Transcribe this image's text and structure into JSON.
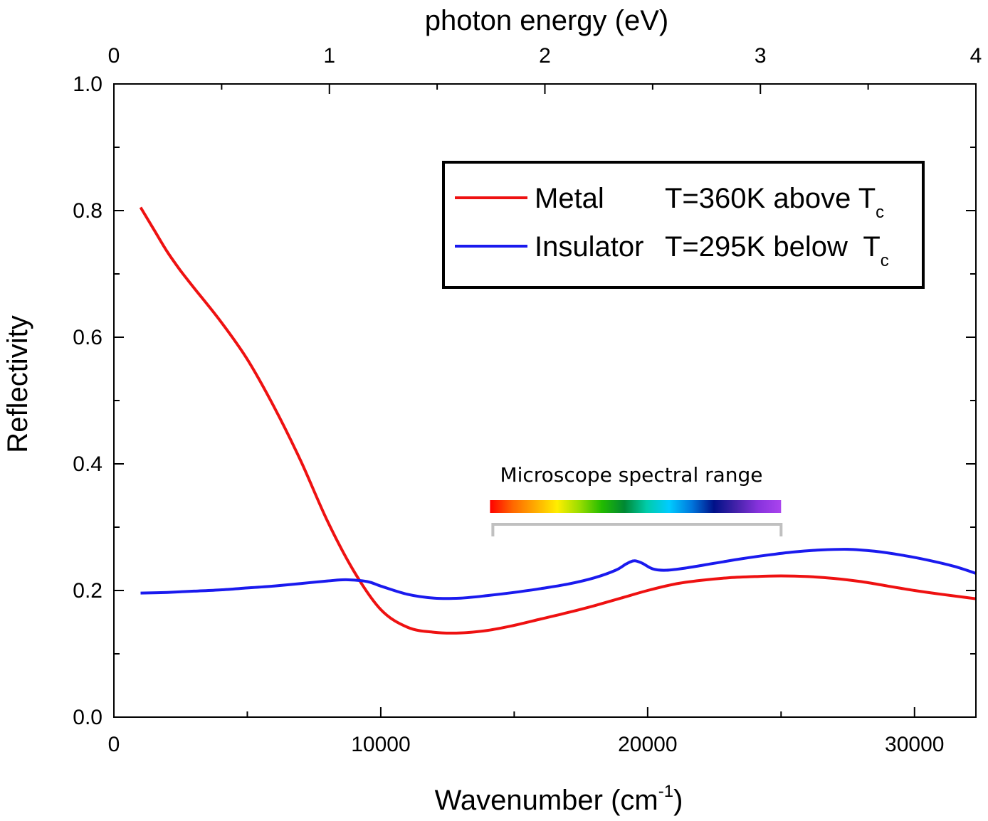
{
  "chart_data": {
    "type": "line",
    "xlabel_main": "Wavenumber (cm",
    "xlabel_sup": "-1",
    "xlabel_close": ")",
    "ylabel": "Reflectivity",
    "top_axis_title": "photon energy (eV)",
    "xlim": [
      0,
      32300
    ],
    "ylim": [
      0.0,
      1.0
    ],
    "top_xlim": [
      0,
      4
    ],
    "x_ticks": [
      0,
      10000,
      20000,
      30000
    ],
    "x_tick_labels": [
      "0",
      "10000",
      "20000",
      "30000"
    ],
    "x_minor_ticks": [
      5000,
      15000,
      25000
    ],
    "y_ticks": [
      0.0,
      0.2,
      0.4,
      0.6,
      0.8,
      1.0
    ],
    "y_tick_labels": [
      "0.0",
      "0.2",
      "0.4",
      "0.6",
      "0.8",
      "1.0"
    ],
    "y_minor_ticks": [
      0.1,
      0.3,
      0.5,
      0.7,
      0.9
    ],
    "top_ticks": [
      0,
      1,
      2,
      3,
      4
    ],
    "top_tick_labels": [
      "0",
      "1",
      "2",
      "3",
      "4"
    ],
    "top_minor_ticks": [
      0.5,
      1.5,
      2.5,
      3.5
    ],
    "legend": {
      "position": "top-right",
      "entries": [
        {
          "label": "Metal",
          "condition": "T=360K above T",
          "subscript": "c",
          "color": "#ee1111"
        },
        {
          "label": "Insulator",
          "condition": "T=295K below  T",
          "subscript": "c",
          "color": "#1a1aee"
        }
      ]
    },
    "series": [
      {
        "name": "Metal T=360K above Tc",
        "color": "#ee1111",
        "x": [
          1000,
          1500,
          2000,
          2500,
          3000,
          4000,
          5000,
          6000,
          7000,
          8000,
          9000,
          10000,
          11000,
          12000,
          13000,
          14000,
          15000,
          16000,
          17000,
          18000,
          19000,
          20000,
          21000,
          22000,
          23000,
          24000,
          25000,
          26000,
          27000,
          28000,
          29000,
          30000,
          31000,
          32300
        ],
        "y": [
          0.805,
          0.77,
          0.735,
          0.705,
          0.678,
          0.625,
          0.565,
          0.49,
          0.405,
          0.31,
          0.23,
          0.17,
          0.142,
          0.134,
          0.133,
          0.137,
          0.145,
          0.155,
          0.165,
          0.176,
          0.188,
          0.2,
          0.21,
          0.216,
          0.22,
          0.222,
          0.223,
          0.222,
          0.219,
          0.214,
          0.207,
          0.2,
          0.194,
          0.187
        ]
      },
      {
        "name": "Insulator T=295K below Tc",
        "color": "#1a1aee",
        "x": [
          1000,
          2000,
          3000,
          4000,
          5000,
          6000,
          7000,
          8000,
          8700,
          9500,
          10000,
          11000,
          12000,
          13000,
          14000,
          15000,
          16000,
          17000,
          18000,
          18800,
          19200,
          19500,
          19800,
          20200,
          20700,
          21500,
          22500,
          23500,
          24500,
          25500,
          26500,
          27500,
          28500,
          29500,
          30500,
          31500,
          32300
        ],
        "y": [
          0.196,
          0.197,
          0.199,
          0.201,
          0.204,
          0.207,
          0.211,
          0.215,
          0.217,
          0.214,
          0.207,
          0.194,
          0.188,
          0.188,
          0.192,
          0.197,
          0.203,
          0.21,
          0.22,
          0.232,
          0.242,
          0.247,
          0.243,
          0.234,
          0.232,
          0.236,
          0.243,
          0.25,
          0.256,
          0.261,
          0.264,
          0.265,
          0.262,
          0.256,
          0.248,
          0.238,
          0.227
        ]
      }
    ],
    "annotation": {
      "text": "Microscope spectral range",
      "x_start": 14200,
      "x_end": 25000,
      "colors": [
        "#ff0000",
        "#ff6600",
        "#ffaa00",
        "#ffee00",
        "#99dd00",
        "#22bb00",
        "#008833",
        "#00ccaa",
        "#00ccff",
        "#0077dd",
        "#001188",
        "#4422aa",
        "#8833dd",
        "#aa44ee"
      ]
    }
  }
}
